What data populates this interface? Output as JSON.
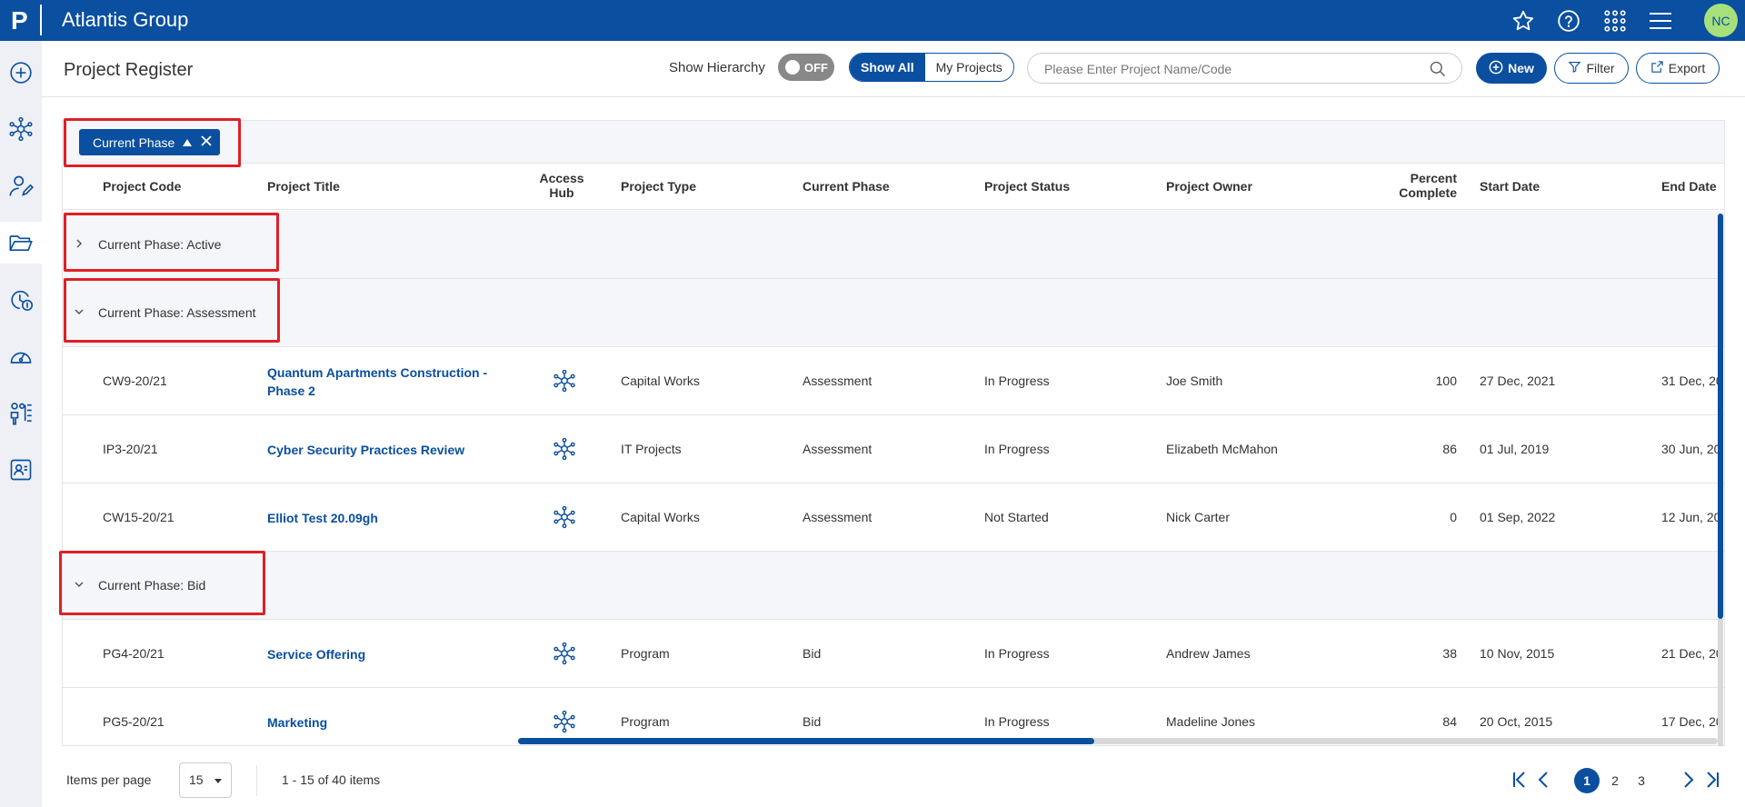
{
  "app": {
    "title": "Atlantis Group",
    "logo_letter": "P",
    "user_initials": "NC"
  },
  "header": {
    "page_title": "Project Register",
    "hierarchy_label": "Show Hierarchy",
    "hierarchy_state": "OFF",
    "filter_all": "Show All",
    "filter_mine": "My Projects",
    "search_placeholder": "Please Enter Project Name/Code",
    "new_label": "New",
    "filter_label": "Filter",
    "export_label": "Export"
  },
  "grouping": {
    "chip_label": "Current Phase"
  },
  "columns": {
    "code": "Project Code",
    "title": "Project Title",
    "hub_line1": "Access",
    "hub_line2": "Hub",
    "type": "Project Type",
    "phase": "Current Phase",
    "status": "Project Status",
    "owner": "Project Owner",
    "pct_line1": "Percent",
    "pct_line2": "Complete",
    "start": "Start Date",
    "end": "End Date"
  },
  "groups": [
    {
      "label": "Current Phase: Active",
      "expanded": false
    },
    {
      "label": "Current Phase: Assessment",
      "expanded": true
    },
    {
      "label": "Current Phase: Bid",
      "expanded": true
    }
  ],
  "rows": [
    {
      "code": "CW9-20/21",
      "title_line1": "Quantum Apartments Construction -",
      "title_line2": "Phase 2",
      "type": "Capital Works",
      "phase": "Assessment",
      "status": "In Progress",
      "owner": "Joe Smith",
      "pct": "100",
      "start": "27 Dec, 2021",
      "end": "31 Dec, 20"
    },
    {
      "code": "IP3-20/21",
      "title_line1": "Cyber Security Practices Review",
      "title_line2": "",
      "type": "IT Projects",
      "phase": "Assessment",
      "status": "In Progress",
      "owner": "Elizabeth McMahon",
      "pct": "86",
      "start": "01 Jul, 2019",
      "end": "30 Jun, 20"
    },
    {
      "code": "CW15-20/21",
      "title_line1": "Elliot Test 20.09gh",
      "title_line2": "",
      "type": "Capital Works",
      "phase": "Assessment",
      "status": "Not Started",
      "owner": "Nick Carter",
      "pct": "0",
      "start": "01 Sep, 2022",
      "end": "12 Jun, 20"
    },
    {
      "code": "PG4-20/21",
      "title_line1": "Service Offering",
      "title_line2": "",
      "type": "Program",
      "phase": "Bid",
      "status": "In Progress",
      "owner": "Andrew James",
      "pct": "38",
      "start": "10 Nov, 2015",
      "end": "21 Dec, 20"
    },
    {
      "code": "PG5-20/21",
      "title_line1": "Marketing",
      "title_line2": "",
      "type": "Program",
      "phase": "Bid",
      "status": "In Progress",
      "owner": "Madeline Jones",
      "pct": "84",
      "start": "20 Oct, 2015",
      "end": "17 Dec, 20"
    }
  ],
  "footer": {
    "items_per_page_label": "Items per page",
    "items_per_page": "15",
    "range_text": "1 - 15 of 40 items",
    "pages": [
      "1",
      "2",
      "3"
    ],
    "current_page": "1"
  },
  "colors": {
    "brand": "#0a4fa0",
    "highlight": "#e01f26",
    "avatar": "#a6e07a"
  }
}
